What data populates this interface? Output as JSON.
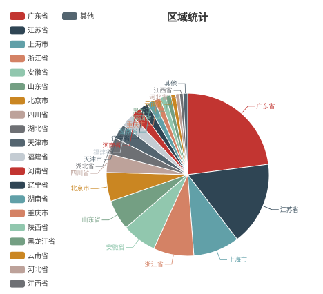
{
  "chart_data": {
    "type": "pie",
    "title": "区域统计",
    "legend": {
      "placement": "left",
      "items": [
        "广东省",
        "江苏省",
        "上海市",
        "浙江省",
        "安徽省",
        "山东省",
        "北京市",
        "四川省",
        "湖北省",
        "天津市",
        "福建省",
        "河南省",
        "辽宁省",
        "湖南省",
        "重庆市",
        "陕西省",
        "黑龙江省",
        "云南省",
        "河北省",
        "江西省"
      ],
      "extra_item": "其他"
    },
    "slices": [
      {
        "label": "广东省",
        "value": 20.0,
        "color": "#c23531"
      },
      {
        "label": "江苏省",
        "value": 14.5,
        "color": "#2f4554"
      },
      {
        "label": "上海市",
        "value": 8.0,
        "color": "#61a0a8"
      },
      {
        "label": "浙江省",
        "value": 7.0,
        "color": "#d48265"
      },
      {
        "label": "安徽省",
        "value": 6.0,
        "color": "#91c7ae"
      },
      {
        "label": "山东省",
        "value": 5.2,
        "color": "#749f83"
      },
      {
        "label": "北京市",
        "value": 5.0,
        "color": "#ca8622"
      },
      {
        "label": "四川省",
        "value": 3.2,
        "color": "#bda29a"
      },
      {
        "label": "湖北省",
        "value": 2.9,
        "color": "#6e7074"
      },
      {
        "label": "天津市",
        "value": 2.6,
        "color": "#546570"
      },
      {
        "label": "福建省",
        "value": 2.2,
        "color": "#c4ccd3"
      },
      {
        "label": "河南省",
        "value": 1.8,
        "color": "#c23531"
      },
      {
        "label": "辽宁省",
        "value": 1.5,
        "color": "#2f4554"
      },
      {
        "label": "湖南省",
        "value": 1.3,
        "color": "#61a0a8"
      },
      {
        "label": "重庆市",
        "value": 1.1,
        "color": "#d48265"
      },
      {
        "label": "陕西省",
        "value": 1.0,
        "color": "#91c7ae"
      },
      {
        "label": "黑龙江省",
        "value": 0.9,
        "color": "#749f83"
      },
      {
        "label": "云南省",
        "value": 0.8,
        "color": "#ca8622"
      },
      {
        "label": "河北省",
        "value": 0.7,
        "color": "#bda29a"
      },
      {
        "label": "江西省",
        "value": 0.6,
        "color": "#6e7074"
      },
      {
        "label": "其他",
        "value": 0.8,
        "color": "#546570"
      }
    ]
  }
}
